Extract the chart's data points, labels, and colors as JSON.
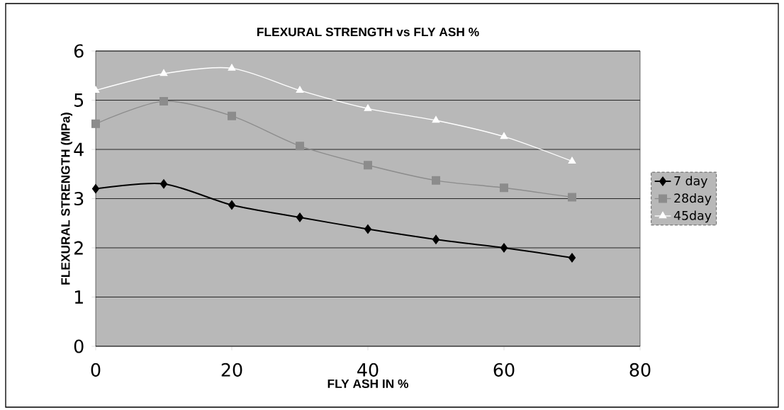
{
  "chart_data": {
    "type": "line",
    "title": "FLEXURAL STRENGTH vs FLY ASH %",
    "xlabel": "FLY ASH IN %",
    "ylabel": "FLEXURAL STRENGTH (MPa)",
    "x": [
      0,
      10,
      20,
      30,
      40,
      50,
      60,
      70
    ],
    "series": [
      {
        "name": "7 day",
        "color": "#000000",
        "marker": "diamond",
        "values": [
          3.2,
          3.3,
          2.87,
          2.62,
          2.38,
          2.17,
          2.0,
          1.8
        ]
      },
      {
        "name": "28day",
        "color": "#8c8c8c",
        "marker": "square",
        "values": [
          4.52,
          4.98,
          4.68,
          4.07,
          3.68,
          3.37,
          3.22,
          3.03
        ]
      },
      {
        "name": "45day",
        "color": "#ffffff",
        "marker": "triangle",
        "values": [
          5.2,
          5.54,
          5.65,
          5.2,
          4.83,
          4.59,
          4.26,
          3.76
        ]
      }
    ],
    "xlim": [
      0,
      80
    ],
    "xticks": [
      0,
      20,
      40,
      60,
      80
    ],
    "ylim": [
      0,
      6
    ],
    "yticks": [
      0,
      1,
      2,
      3,
      4,
      5,
      6
    ],
    "grid": "y",
    "legend": "right"
  }
}
